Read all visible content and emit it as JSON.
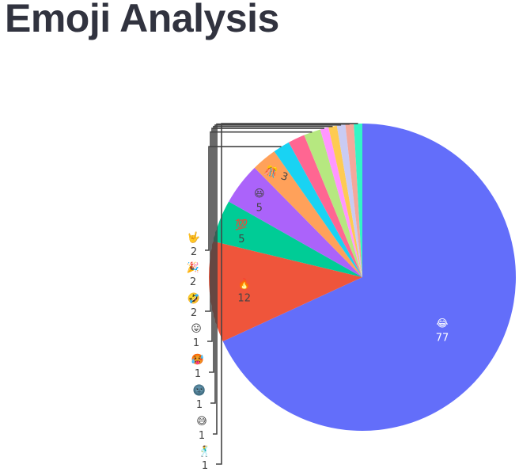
{
  "page": {
    "title": "Emoji Analysis"
  },
  "chart_data": {
    "type": "pie",
    "title": "",
    "slices": [
      {
        "label": "😂",
        "value": 77,
        "color": "#636efa",
        "text_color": "#ffffff"
      },
      {
        "label": "🔥",
        "value": 12,
        "color": "#ef553b",
        "text_color": "#444444"
      },
      {
        "label": "💯",
        "value": 5,
        "color": "#00cc96",
        "text_color": "#444444"
      },
      {
        "label": "😆",
        "value": 5,
        "color": "#ab63fa",
        "text_color": "#444444"
      },
      {
        "label": "🎊",
        "value": 3,
        "color": "#ffa15a",
        "text_color": "#444444"
      },
      {
        "label": "🤟",
        "value": 2,
        "color": "#19d3f3",
        "text_color": "#444444"
      },
      {
        "label": "🎉",
        "value": 2,
        "color": "#ff6692",
        "text_color": "#444444"
      },
      {
        "label": "🤣",
        "value": 2,
        "color": "#b6e880",
        "text_color": "#444444"
      },
      {
        "label": "😛",
        "value": 1,
        "color": "#ff97ff",
        "text_color": "#444444"
      },
      {
        "label": "🥵",
        "value": 1,
        "color": "#fecb52",
        "text_color": "#444444"
      },
      {
        "label": "🌚",
        "value": 1,
        "color": "#c9cbf3",
        "text_color": "#444444"
      },
      {
        "label": "😅",
        "value": 1,
        "color": "#f4a89b",
        "text_color": "#444444"
      },
      {
        "label": "🕺",
        "value": 1,
        "color": "#33f5c6",
        "text_color": "#444444"
      }
    ],
    "legend": "none"
  }
}
